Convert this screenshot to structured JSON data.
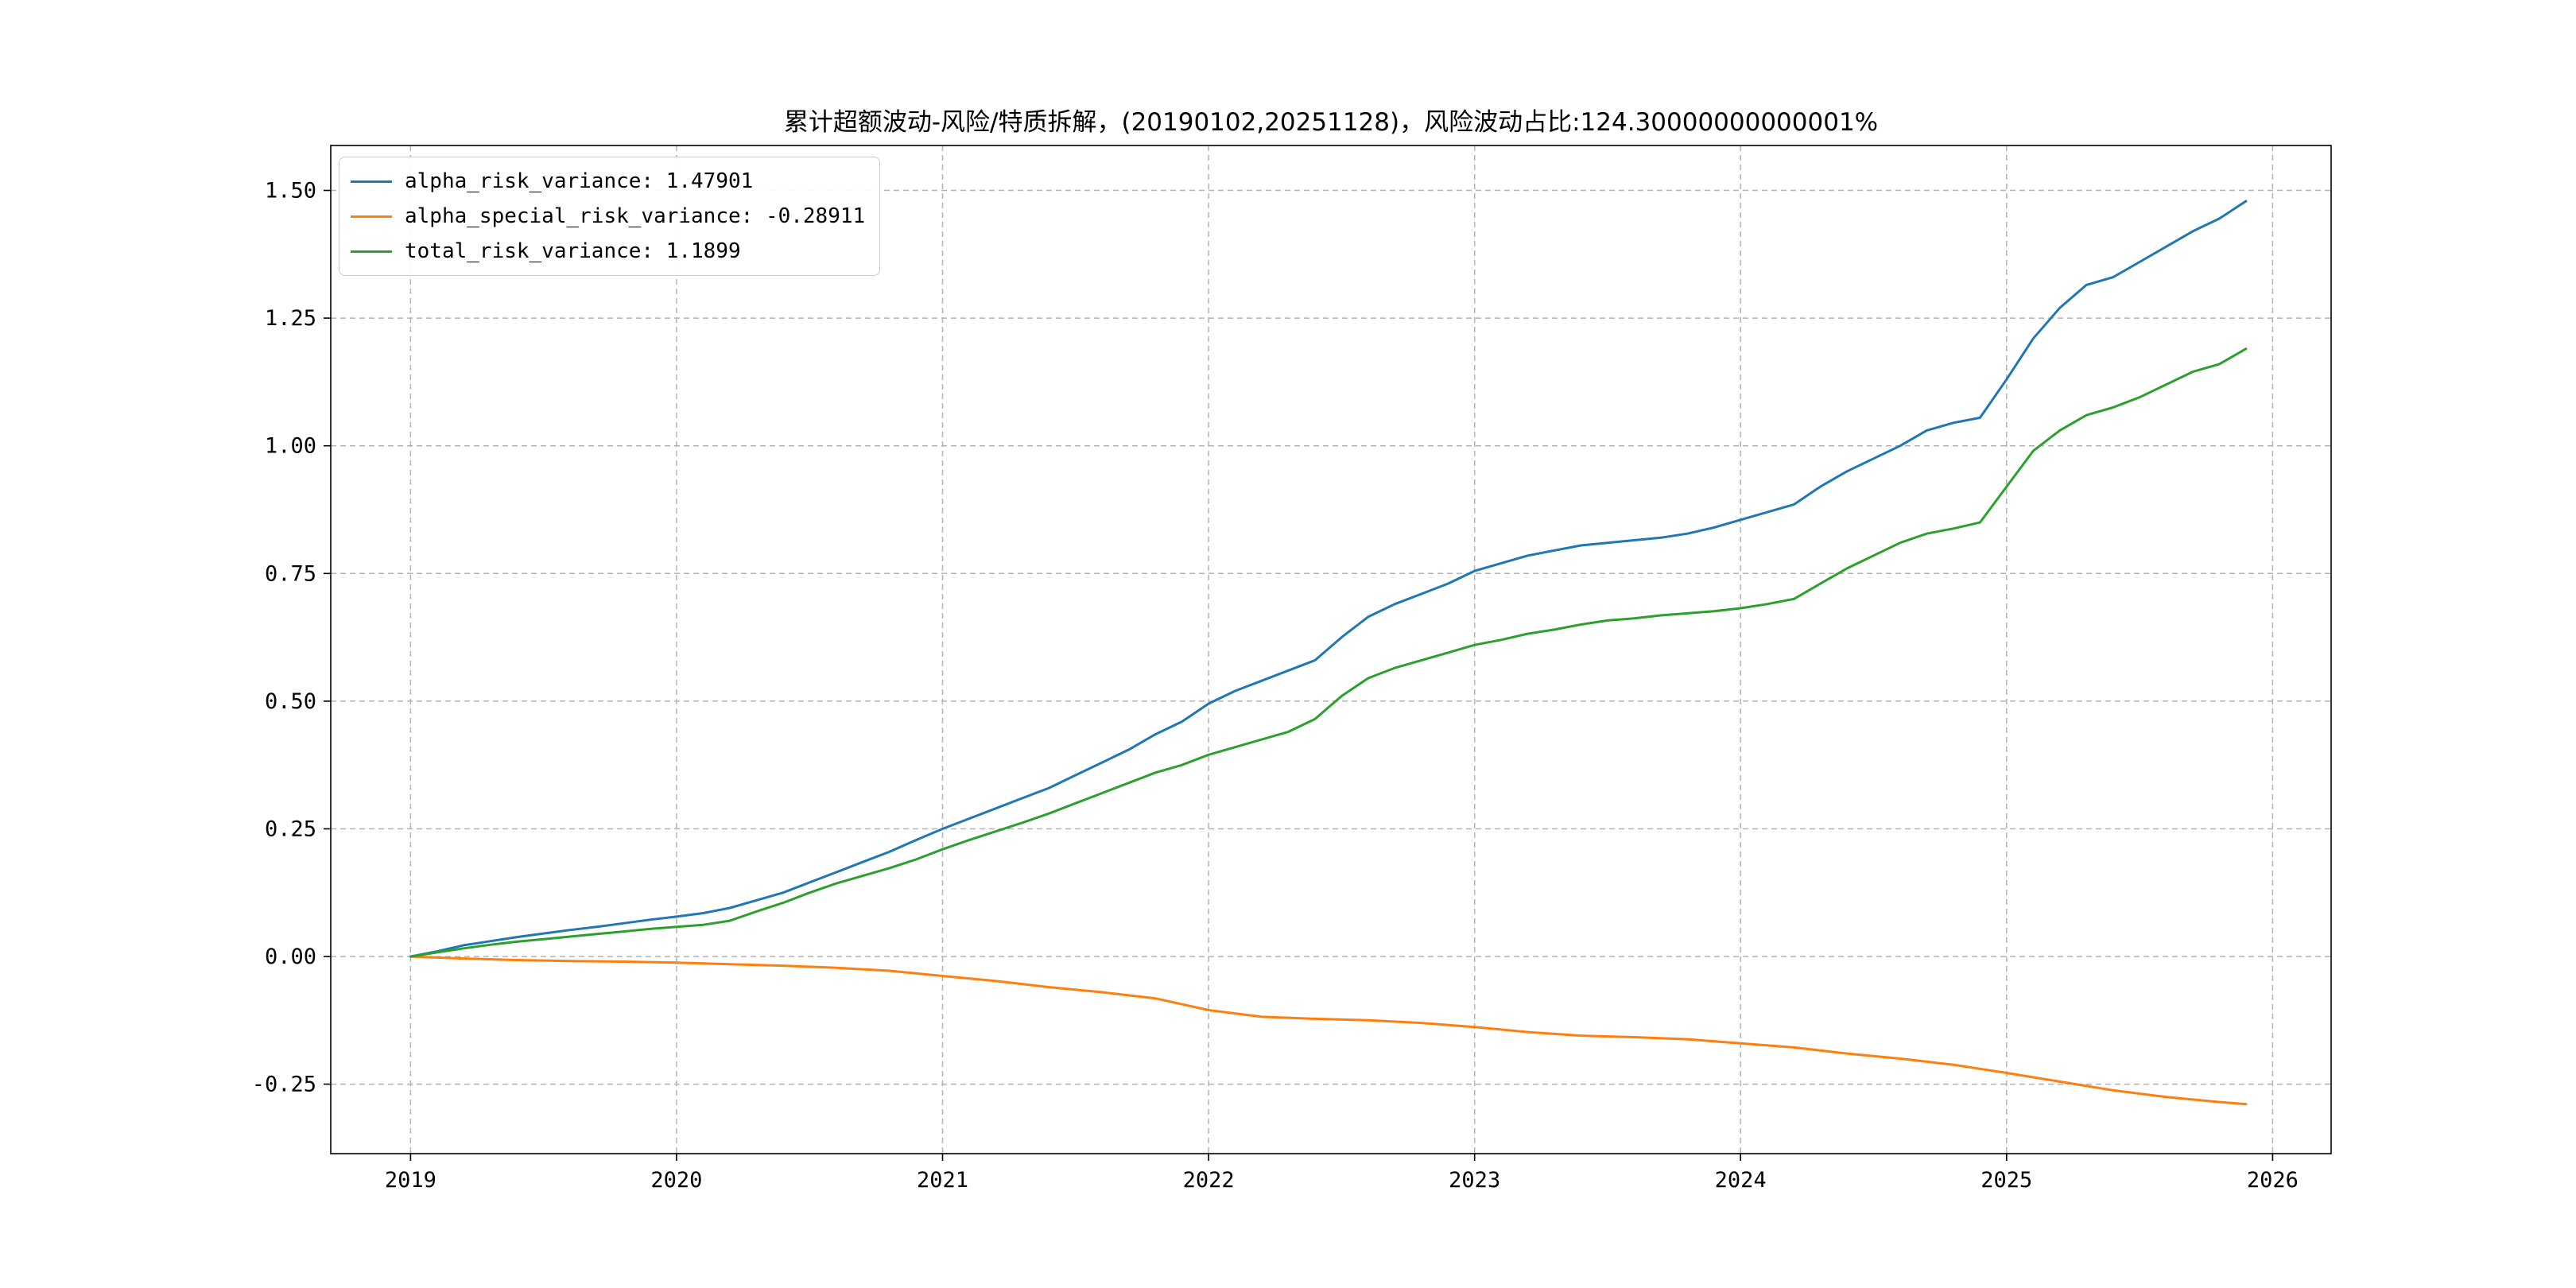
{
  "chart_data": {
    "type": "line",
    "title": "累计超额波动-风险/特质拆解，(20190102,20251128)，风险波动占比:124.30000000000001%",
    "xlabel": "",
    "ylabel": "",
    "xlim": [
      2018.7,
      2026.22
    ],
    "ylim": [
      -0.386,
      1.588
    ],
    "grid": true,
    "grid_style": "dashed",
    "grid_color": "#b3b3b3",
    "legend_position": "upper left",
    "x_ticks": [
      2019,
      2020,
      2021,
      2022,
      2023,
      2024,
      2025,
      2026
    ],
    "x_tick_labels": [
      "2019",
      "2020",
      "2021",
      "2022",
      "2023",
      "2024",
      "2025",
      "2026"
    ],
    "y_ticks": [
      -0.25,
      0.0,
      0.25,
      0.5,
      0.75,
      1.0,
      1.25,
      1.5
    ],
    "y_tick_labels": [
      "-0.25",
      "0.00",
      "0.25",
      "0.50",
      "0.75",
      "1.00",
      "1.25",
      "1.50"
    ],
    "series": [
      {
        "name": "alpha_risk_variance: 1.47901",
        "color": "#1f77b4",
        "final_value": 1.47901,
        "x": [
          2019.0,
          2019.1,
          2019.2,
          2019.3,
          2019.4,
          2019.5,
          2019.6,
          2019.7,
          2019.8,
          2019.9,
          2020.0,
          2020.1,
          2020.2,
          2020.3,
          2020.4,
          2020.5,
          2020.6,
          2020.7,
          2020.8,
          2020.9,
          2021.0,
          2021.1,
          2021.2,
          2021.3,
          2021.4,
          2021.5,
          2021.6,
          2021.7,
          2021.8,
          2021.9,
          2022.0,
          2022.1,
          2022.2,
          2022.3,
          2022.4,
          2022.5,
          2022.6,
          2022.7,
          2022.8,
          2022.9,
          2023.0,
          2023.1,
          2023.2,
          2023.3,
          2023.4,
          2023.5,
          2023.6,
          2023.7,
          2023.8,
          2023.9,
          2024.0,
          2024.1,
          2024.2,
          2024.3,
          2024.4,
          2024.5,
          2024.6,
          2024.7,
          2024.8,
          2024.9,
          2025.0,
          2025.1,
          2025.2,
          2025.3,
          2025.4,
          2025.5,
          2025.6,
          2025.7,
          2025.8,
          2025.9
        ],
        "y": [
          0.0,
          0.01,
          0.022,
          0.03,
          0.038,
          0.045,
          0.052,
          0.058,
          0.065,
          0.072,
          0.078,
          0.085,
          0.095,
          0.11,
          0.125,
          0.145,
          0.165,
          0.185,
          0.205,
          0.228,
          0.25,
          0.27,
          0.29,
          0.31,
          0.33,
          0.355,
          0.38,
          0.405,
          0.435,
          0.46,
          0.495,
          0.52,
          0.54,
          0.56,
          0.58,
          0.625,
          0.665,
          0.69,
          0.71,
          0.73,
          0.755,
          0.77,
          0.785,
          0.795,
          0.805,
          0.81,
          0.815,
          0.82,
          0.828,
          0.84,
          0.855,
          0.87,
          0.885,
          0.92,
          0.95,
          0.975,
          1.0,
          1.03,
          1.045,
          1.055,
          1.13,
          1.21,
          1.27,
          1.315,
          1.33,
          1.36,
          1.39,
          1.42,
          1.445,
          1.479
        ]
      },
      {
        "name": "alpha_special_risk_variance: -0.28911",
        "color": "#ff7f0e",
        "final_value": -0.28911,
        "x": [
          2019.0,
          2019.2,
          2019.4,
          2019.6,
          2019.8,
          2020.0,
          2020.2,
          2020.4,
          2020.6,
          2020.8,
          2021.0,
          2021.2,
          2021.4,
          2021.6,
          2021.8,
          2022.0,
          2022.2,
          2022.4,
          2022.6,
          2022.8,
          2023.0,
          2023.2,
          2023.4,
          2023.6,
          2023.8,
          2024.0,
          2024.2,
          2024.4,
          2024.6,
          2024.8,
          2025.0,
          2025.2,
          2025.4,
          2025.6,
          2025.8,
          2025.9
        ],
        "y": [
          0.0,
          -0.004,
          -0.007,
          -0.009,
          -0.01,
          -0.012,
          -0.015,
          -0.018,
          -0.022,
          -0.028,
          -0.038,
          -0.048,
          -0.06,
          -0.07,
          -0.082,
          -0.105,
          -0.118,
          -0.122,
          -0.125,
          -0.13,
          -0.138,
          -0.148,
          -0.155,
          -0.158,
          -0.162,
          -0.17,
          -0.178,
          -0.19,
          -0.2,
          -0.212,
          -0.228,
          -0.245,
          -0.262,
          -0.275,
          -0.285,
          -0.289
        ]
      },
      {
        "name": "total_risk_variance: 1.1899",
        "color": "#2ca02c",
        "final_value": 1.1899,
        "x": [
          2019.0,
          2019.1,
          2019.2,
          2019.3,
          2019.4,
          2019.5,
          2019.6,
          2019.7,
          2019.8,
          2019.9,
          2020.0,
          2020.1,
          2020.2,
          2020.3,
          2020.4,
          2020.5,
          2020.6,
          2020.7,
          2020.8,
          2020.9,
          2021.0,
          2021.1,
          2021.2,
          2021.3,
          2021.4,
          2021.5,
          2021.6,
          2021.7,
          2021.8,
          2021.9,
          2022.0,
          2022.1,
          2022.2,
          2022.3,
          2022.4,
          2022.5,
          2022.6,
          2022.7,
          2022.8,
          2022.9,
          2023.0,
          2023.1,
          2023.2,
          2023.3,
          2023.4,
          2023.5,
          2023.6,
          2023.7,
          2023.8,
          2023.9,
          2024.0,
          2024.1,
          2024.2,
          2024.3,
          2024.4,
          2024.5,
          2024.6,
          2024.7,
          2024.8,
          2024.9,
          2025.0,
          2025.1,
          2025.2,
          2025.3,
          2025.4,
          2025.5,
          2025.6,
          2025.7,
          2025.8,
          2025.9
        ],
        "y": [
          0.0,
          0.008,
          0.016,
          0.023,
          0.029,
          0.034,
          0.039,
          0.044,
          0.049,
          0.054,
          0.058,
          0.062,
          0.07,
          0.088,
          0.105,
          0.125,
          0.143,
          0.158,
          0.173,
          0.19,
          0.21,
          0.228,
          0.245,
          0.262,
          0.28,
          0.3,
          0.32,
          0.34,
          0.36,
          0.375,
          0.395,
          0.41,
          0.425,
          0.44,
          0.465,
          0.51,
          0.545,
          0.565,
          0.58,
          0.595,
          0.61,
          0.62,
          0.632,
          0.64,
          0.65,
          0.658,
          0.662,
          0.668,
          0.672,
          0.676,
          0.682,
          0.69,
          0.7,
          0.73,
          0.76,
          0.785,
          0.81,
          0.828,
          0.838,
          0.85,
          0.92,
          0.99,
          1.03,
          1.06,
          1.075,
          1.095,
          1.12,
          1.145,
          1.16,
          1.19
        ]
      }
    ],
    "date_range": "(20190102,20251128)",
    "risk_ratio_label": "风险波动占比:124.30000000000001%"
  },
  "layout_colors": {
    "axis": "#000000",
    "background": "#ffffff",
    "grid": "#b3b3b3"
  }
}
